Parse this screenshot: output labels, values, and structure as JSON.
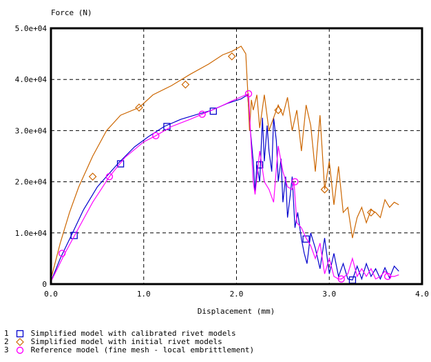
{
  "chart_data": {
    "type": "line",
    "ylabel": "Force (N)",
    "xlabel": "Displacement (mm)",
    "xlim": [
      0,
      4
    ],
    "ylim": [
      0,
      50000
    ],
    "grid": true,
    "legend_position": "bottom",
    "x_ticks": [
      "0.0",
      "1.0",
      "2.0",
      "3.0",
      "4.0"
    ],
    "y_ticks": [
      "0",
      "1.0e+04",
      "2.0e+04",
      "3.0e+04",
      "4.0e+04",
      "5.0e+04"
    ],
    "series": [
      {
        "name": "Simplified model with calibrated rivet models",
        "index": "1",
        "color": "#0000cc",
        "marker": "square",
        "x": [
          0.0,
          0.1,
          0.22,
          0.35,
          0.5,
          0.72,
          0.9,
          1.05,
          1.22,
          1.4,
          1.6,
          1.72,
          1.9,
          2.05,
          2.12,
          2.15,
          2.18,
          2.2,
          2.22,
          2.25,
          2.28,
          2.3,
          2.33,
          2.35,
          2.38,
          2.4,
          2.43,
          2.45,
          2.48,
          2.5,
          2.53,
          2.55,
          2.58,
          2.6,
          2.63,
          2.66,
          2.7,
          2.73,
          2.76,
          2.8,
          2.85,
          2.9,
          2.95,
          3.0,
          3.05,
          3.1,
          3.15,
          3.2,
          3.25,
          3.3,
          3.35,
          3.4,
          3.45,
          3.5,
          3.55,
          3.6,
          3.65,
          3.7,
          3.75
        ],
        "y": [
          500,
          5000,
          9500,
          14500,
          19000,
          23500,
          26800,
          28800,
          30800,
          32200,
          33300,
          33900,
          35300,
          36200,
          37000,
          30000,
          24000,
          18000,
          23300,
          20000,
          32500,
          24000,
          31000,
          26000,
          22000,
          32500,
          28000,
          20000,
          24500,
          16000,
          21000,
          13000,
          17500,
          21000,
          11000,
          14000,
          8800,
          6000,
          4000,
          10000,
          7000,
          3000,
          9000,
          2000,
          6000,
          1500,
          4000,
          1000,
          800,
          3500,
          1000,
          4000,
          1500,
          3000,
          1000,
          3200,
          1200,
          3500,
          2500
        ],
        "markers_x": [
          0.25,
          0.75,
          1.25,
          1.75,
          2.25,
          2.75,
          3.25
        ],
        "markers_y": [
          9500,
          23500,
          30800,
          33800,
          23300,
          8800,
          800
        ]
      },
      {
        "name": "Simplified model with initial rivet models",
        "index": "2",
        "color": "#cc6600",
        "marker": "diamond",
        "x": [
          0.0,
          0.1,
          0.2,
          0.3,
          0.45,
          0.6,
          0.75,
          0.95,
          1.1,
          1.3,
          1.5,
          1.7,
          1.85,
          1.95,
          2.05,
          2.1,
          2.12,
          2.14,
          2.16,
          2.18,
          2.22,
          2.25,
          2.3,
          2.35,
          2.4,
          2.45,
          2.5,
          2.55,
          2.6,
          2.65,
          2.7,
          2.75,
          2.8,
          2.85,
          2.9,
          2.95,
          3.0,
          3.05,
          3.1,
          3.15,
          3.2,
          3.25,
          3.3,
          3.35,
          3.4,
          3.45,
          3.5,
          3.55,
          3.6,
          3.65,
          3.7,
          3.75
        ],
        "y": [
          1000,
          8000,
          14000,
          19000,
          25000,
          30000,
          33000,
          34500,
          37000,
          38800,
          41000,
          43000,
          44800,
          45500,
          46500,
          45000,
          38000,
          30000,
          36000,
          34000,
          37000,
          30500,
          37000,
          30000,
          32500,
          35000,
          33000,
          36500,
          30000,
          34000,
          26000,
          35000,
          31000,
          22000,
          33000,
          18500,
          24000,
          15500,
          23000,
          14000,
          15000,
          9000,
          13000,
          15000,
          12000,
          14500,
          14000,
          13000,
          16500,
          15000,
          16000,
          15500
        ],
        "markers_x": [
          0.45,
          0.95,
          1.45,
          1.95,
          2.45,
          2.95,
          3.45
        ],
        "markers_y": [
          21000,
          34500,
          39000,
          44500,
          34000,
          18500,
          14000
        ]
      },
      {
        "name": "Reference model (fine mesh - local embrittlement)",
        "index": "3",
        "color": "#ff00ff",
        "marker": "circle",
        "x": [
          0.0,
          0.15,
          0.3,
          0.45,
          0.63,
          0.8,
          1.0,
          1.13,
          1.3,
          1.5,
          1.63,
          1.8,
          1.95,
          2.1,
          2.13,
          2.15,
          2.18,
          2.2,
          2.25,
          2.3,
          2.35,
          2.4,
          2.45,
          2.5,
          2.55,
          2.6,
          2.62,
          2.65,
          2.7,
          2.75,
          2.8,
          2.85,
          2.9,
          2.95,
          3.0,
          3.05,
          3.1,
          3.13,
          3.2,
          3.25,
          3.3,
          3.35,
          3.4,
          3.45,
          3.5,
          3.55,
          3.6,
          3.65,
          3.7,
          3.75
        ],
        "y": [
          500,
          6000,
          11000,
          16000,
          21000,
          24800,
          27800,
          29000,
          30800,
          32200,
          33200,
          34500,
          35800,
          37000,
          37200,
          30000,
          20000,
          17500,
          26000,
          20000,
          18500,
          16000,
          27000,
          22000,
          19000,
          18500,
          20000,
          12000,
          11000,
          9000,
          7500,
          5000,
          8000,
          2000,
          5000,
          1500,
          1000,
          1000,
          2000,
          5000,
          1500,
          3000,
          1500,
          3000,
          1000,
          1500,
          2500,
          1500,
          1500,
          1800
        ],
        "markers_x": [
          0.12,
          0.63,
          1.13,
          1.63,
          2.13,
          2.63,
          3.13,
          3.63
        ],
        "markers_y": [
          6000,
          21000,
          29000,
          33200,
          37200,
          20000,
          1000,
          1500
        ]
      }
    ]
  }
}
